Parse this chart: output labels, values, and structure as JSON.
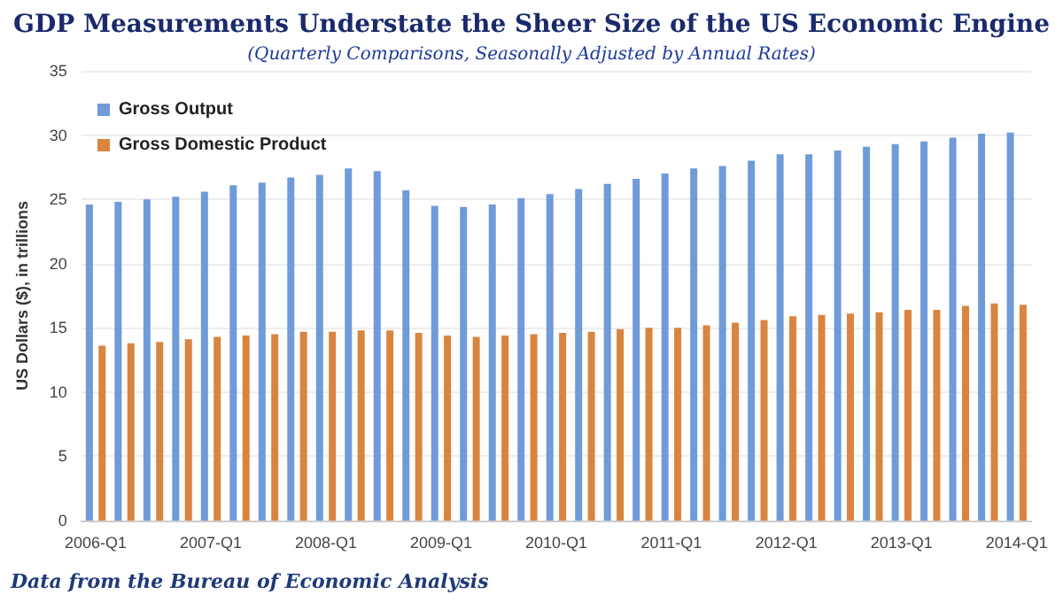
{
  "chart_data": {
    "type": "bar",
    "title": "GDP Measurements Understate the Sheer Size of the US Economic Engine",
    "subtitle": "(Quarterly Comparisons, Seasonally Adjusted by Annual Rates)",
    "ylabel": "US Dollars ($), in trillions",
    "categories": [
      "2006-Q1",
      null,
      null,
      null,
      "2007-Q1",
      null,
      null,
      null,
      "2008-Q1",
      null,
      null,
      null,
      "2009-Q1",
      null,
      null,
      null,
      "2010-Q1",
      null,
      null,
      null,
      "2011-Q1",
      null,
      null,
      null,
      "2012-Q1",
      null,
      null,
      null,
      "2013-Q1",
      null,
      null,
      null,
      "2014-Q1"
    ],
    "series": [
      {
        "name": "Gross Output",
        "color": "#6f9bd8",
        "values": [
          24.6,
          24.8,
          25.0,
          25.2,
          25.6,
          26.1,
          26.3,
          26.7,
          26.9,
          27.4,
          27.2,
          25.7,
          24.5,
          24.4,
          24.6,
          25.1,
          25.4,
          25.8,
          26.2,
          26.6,
          27.0,
          27.4,
          27.6,
          28.0,
          28.5,
          28.5,
          28.8,
          29.1,
          29.3,
          29.5,
          29.8,
          30.1,
          30.2
        ]
      },
      {
        "name": "Gross Domestic Product",
        "color": "#d9843f",
        "values": [
          13.6,
          13.8,
          13.9,
          14.1,
          14.3,
          14.4,
          14.5,
          14.7,
          14.7,
          14.8,
          14.8,
          14.6,
          14.4,
          14.3,
          14.4,
          14.5,
          14.6,
          14.7,
          14.9,
          15.0,
          15.0,
          15.2,
          15.4,
          15.6,
          15.9,
          16.0,
          16.1,
          16.2,
          16.4,
          16.4,
          16.7,
          16.9,
          16.8
        ]
      }
    ],
    "ylim": [
      0,
      35
    ],
    "yticks": [
      0,
      5,
      10,
      15,
      20,
      25,
      30,
      35
    ],
    "grid": "y",
    "legend": "top left",
    "annotations": [
      "Data from the Bureau of Economic Analysis"
    ]
  }
}
